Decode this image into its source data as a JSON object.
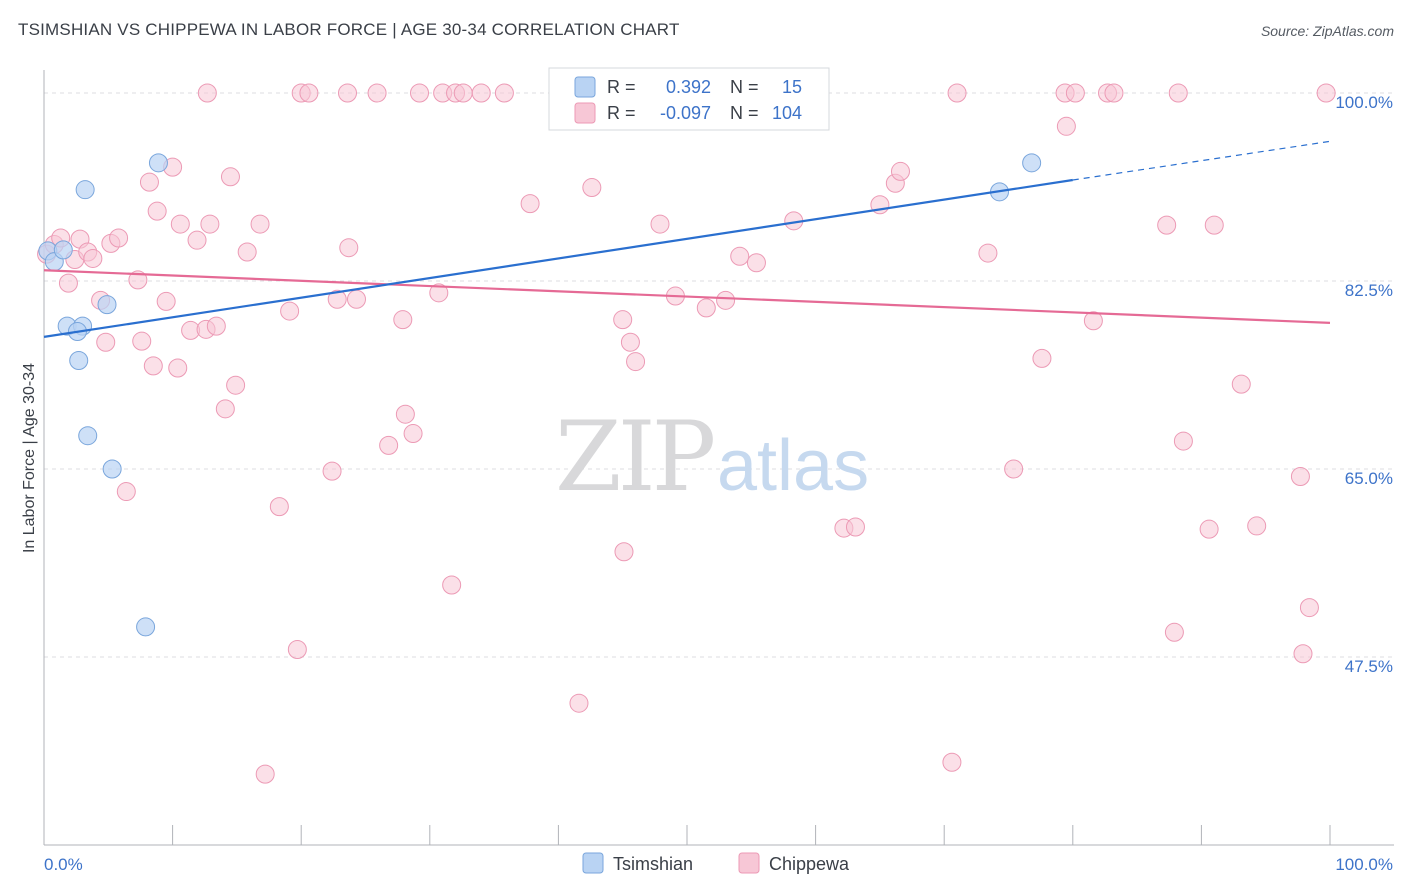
{
  "header": {
    "title": "TSIMSHIAN VS CHIPPEWA IN LABOR FORCE | AGE 30-34 CORRELATION CHART",
    "source": "Source: ZipAtlas.com"
  },
  "watermark": {
    "zip": "ZIP",
    "atlas": "atlas"
  },
  "legend": {
    "r_label": "R =",
    "n_label": "N =",
    "rows": [
      {
        "r": "0.392",
        "n": "15"
      },
      {
        "r": "-0.097",
        "n": "104"
      }
    ]
  },
  "colors": {
    "tsimshian_fill": "#b9d3f3",
    "tsimshian_stroke": "#7aa6dc",
    "tsimshian_line": "#2a6fcf",
    "chippewa_fill": "#f7c7d6",
    "chippewa_stroke": "#ec9ab5",
    "chippewa_line": "#e56a95",
    "accent_text": "#3d73c9"
  },
  "chart_data": {
    "type": "scatter",
    "title": "TSIMSHIAN VS CHIPPEWA IN LABOR FORCE | AGE 30-34 CORRELATION CHART",
    "xlabel": "",
    "ylabel": "In Labor Force | Age 30-34",
    "xlim": [
      0,
      100
    ],
    "ylim": [
      30,
      101.5
    ],
    "x_tick_labels": [
      "0.0%",
      "100.0%"
    ],
    "y_ticks": [
      47.5,
      65.0,
      82.5,
      100.0
    ],
    "y_tick_labels": [
      "47.5%",
      "65.0%",
      "82.5%",
      "100.0%"
    ],
    "grid": true,
    "legend_position": "top-center",
    "series": [
      {
        "name": "Tsimshian",
        "r": 0.392,
        "n": 15,
        "trend": {
          "x0": 0,
          "y0": 77.3,
          "x1": 80,
          "y1": 91.9,
          "dashed_to_x": 100,
          "dashed_to_y": 95.5
        },
        "points": [
          [
            0.3,
            85.3
          ],
          [
            0.8,
            84.3
          ],
          [
            1.5,
            85.4
          ],
          [
            1.8,
            78.3
          ],
          [
            3.0,
            78.3
          ],
          [
            2.6,
            77.8
          ],
          [
            2.7,
            75.1
          ],
          [
            3.2,
            91.0
          ],
          [
            3.4,
            68.1
          ],
          [
            4.9,
            80.3
          ],
          [
            5.3,
            65.0
          ],
          [
            7.9,
            50.3
          ],
          [
            8.9,
            93.5
          ],
          [
            74.3,
            90.8
          ],
          [
            76.8,
            93.5
          ]
        ]
      },
      {
        "name": "Chippewa",
        "r": -0.097,
        "n": 104,
        "trend": {
          "x0": 0,
          "y0": 83.5,
          "x1": 100,
          "y1": 78.6
        },
        "points": [
          [
            0.2,
            85.0
          ],
          [
            0.8,
            85.9
          ],
          [
            1.3,
            86.5
          ],
          [
            1.9,
            82.3
          ],
          [
            2.4,
            84.5
          ],
          [
            2.8,
            86.4
          ],
          [
            3.4,
            85.2
          ],
          [
            3.8,
            84.6
          ],
          [
            4.4,
            80.7
          ],
          [
            4.8,
            76.8
          ],
          [
            5.2,
            86.0
          ],
          [
            5.8,
            86.5
          ],
          [
            6.4,
            62.9
          ],
          [
            7.3,
            82.6
          ],
          [
            7.6,
            76.9
          ],
          [
            8.2,
            91.7
          ],
          [
            8.5,
            74.6
          ],
          [
            8.8,
            89.0
          ],
          [
            9.5,
            80.6
          ],
          [
            10.0,
            93.1
          ],
          [
            10.4,
            74.4
          ],
          [
            10.6,
            87.8
          ],
          [
            11.4,
            77.9
          ],
          [
            11.9,
            86.3
          ],
          [
            12.6,
            78.0
          ],
          [
            12.9,
            87.8
          ],
          [
            13.4,
            78.3
          ],
          [
            14.1,
            70.6
          ],
          [
            14.5,
            92.2
          ],
          [
            14.9,
            72.8
          ],
          [
            15.8,
            85.2
          ],
          [
            16.8,
            87.8
          ],
          [
            17.2,
            36.6
          ],
          [
            18.3,
            61.5
          ],
          [
            19.1,
            79.7
          ],
          [
            19.7,
            48.2
          ],
          [
            22.4,
            64.8
          ],
          [
            22.8,
            80.8
          ],
          [
            23.7,
            85.6
          ],
          [
            24.3,
            80.8
          ],
          [
            26.8,
            67.2
          ],
          [
            27.9,
            78.9
          ],
          [
            28.1,
            70.1
          ],
          [
            28.7,
            68.3
          ],
          [
            30.7,
            81.4
          ],
          [
            31.7,
            54.2
          ],
          [
            37.8,
            89.7
          ],
          [
            41.6,
            43.2
          ],
          [
            42.6,
            91.2
          ],
          [
            45.0,
            78.9
          ],
          [
            45.1,
            57.3
          ],
          [
            45.6,
            76.8
          ],
          [
            46.0,
            75.0
          ],
          [
            47.9,
            87.8
          ],
          [
            49.1,
            81.1
          ],
          [
            51.5,
            80.0
          ],
          [
            53.0,
            80.7
          ],
          [
            54.1,
            84.8
          ],
          [
            55.4,
            84.2
          ],
          [
            58.3,
            88.1
          ],
          [
            62.2,
            59.5
          ],
          [
            63.1,
            59.6
          ],
          [
            65.0,
            89.6
          ],
          [
            66.2,
            91.6
          ],
          [
            66.6,
            92.7
          ],
          [
            70.6,
            37.7
          ],
          [
            73.4,
            85.1
          ],
          [
            75.4,
            65.0
          ],
          [
            77.6,
            75.3
          ],
          [
            79.5,
            96.9
          ],
          [
            81.6,
            78.8
          ],
          [
            87.3,
            87.7
          ],
          [
            87.9,
            49.8
          ],
          [
            88.6,
            67.6
          ],
          [
            90.6,
            59.4
          ],
          [
            91.0,
            87.7
          ],
          [
            93.1,
            72.9
          ],
          [
            94.3,
            59.7
          ],
          [
            97.7,
            64.3
          ],
          [
            97.9,
            47.8
          ],
          [
            98.4,
            52.1
          ],
          [
            12.7,
            100.0
          ],
          [
            20.0,
            100.0
          ],
          [
            20.6,
            100.0
          ],
          [
            23.6,
            100.0
          ],
          [
            25.9,
            100.0
          ],
          [
            29.2,
            100.0
          ],
          [
            31.0,
            100.0
          ],
          [
            32.0,
            100.0
          ],
          [
            32.6,
            100.0
          ],
          [
            34.0,
            100.0
          ],
          [
            35.8,
            100.0
          ],
          [
            51.9,
            100.0
          ],
          [
            52.5,
            100.0
          ],
          [
            55.3,
            100.0
          ],
          [
            56.7,
            100.0
          ],
          [
            58.3,
            100.0
          ],
          [
            59.9,
            100.0
          ],
          [
            71.0,
            100.0
          ],
          [
            79.4,
            100.0
          ],
          [
            80.2,
            100.0
          ],
          [
            82.7,
            100.0
          ],
          [
            83.2,
            100.0
          ],
          [
            88.2,
            100.0
          ],
          [
            99.7,
            100.0
          ]
        ]
      }
    ]
  }
}
